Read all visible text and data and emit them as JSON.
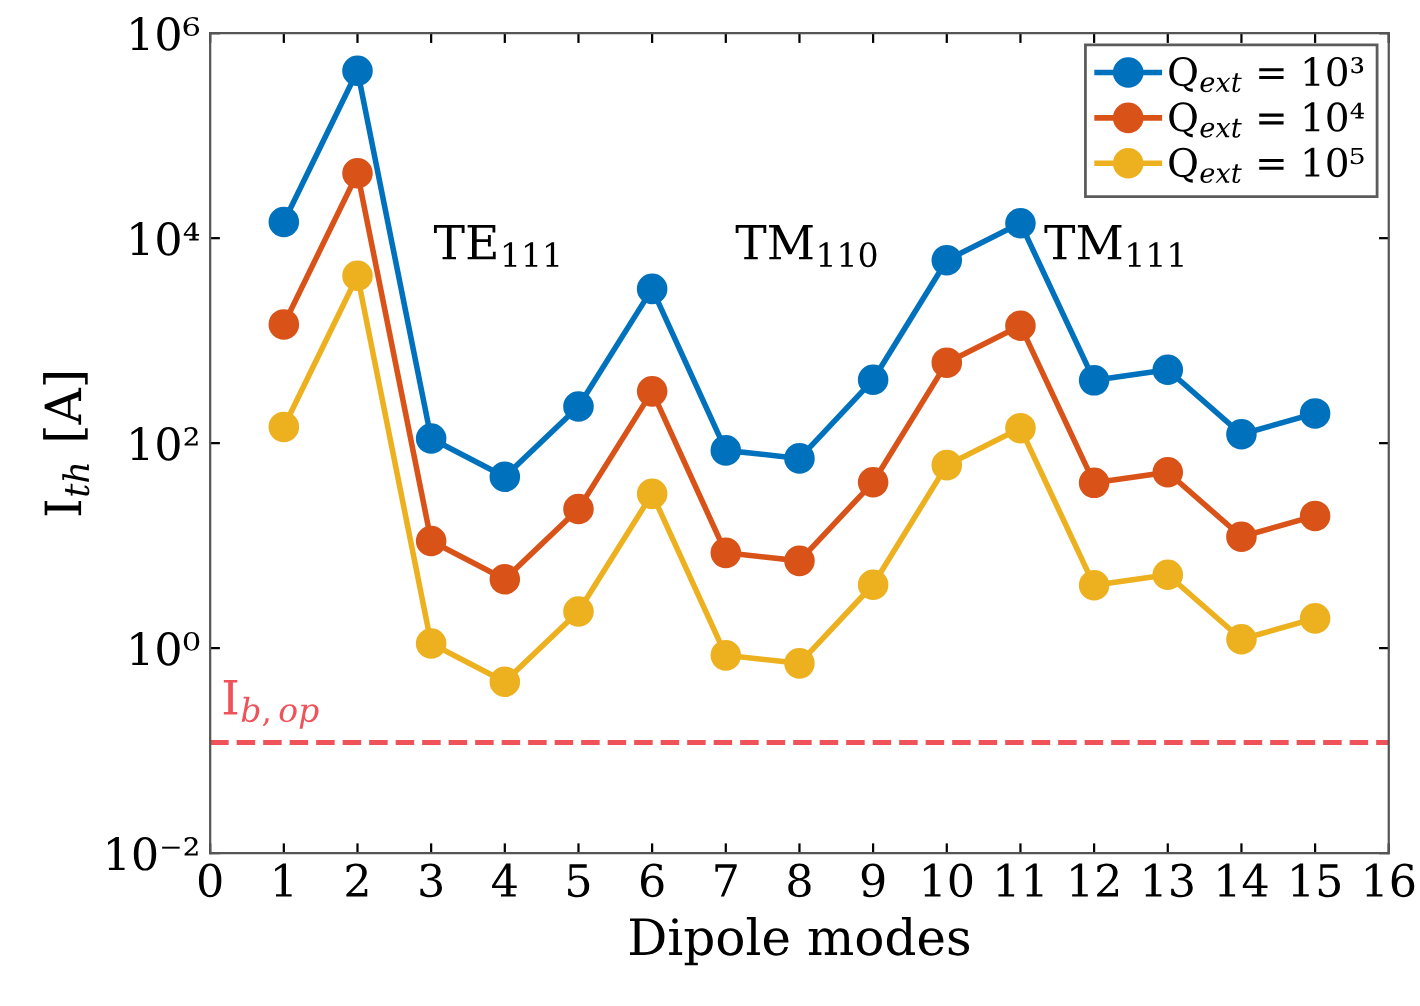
{
  "chart_data": {
    "type": "line",
    "xlabel": "Dipole modes",
    "ylabel": "I$_{th}$ [A]",
    "x": [
      1,
      2,
      3,
      4,
      5,
      6,
      7,
      8,
      9,
      10,
      11,
      12,
      13,
      14,
      15
    ],
    "series": [
      {
        "name": "Q$_{ext}$ = 10³",
        "color": "#0072bd",
        "values": [
          14400,
          430000,
          111,
          47,
          228,
          3200,
          85,
          71,
          415,
          6100,
          14000,
          410,
          520,
          122,
          195
        ]
      },
      {
        "name": "Q$_{ext}$ = 10⁴",
        "color": "#d95319",
        "values": [
          1440,
          43000,
          11.1,
          4.7,
          22.8,
          320,
          8.5,
          7.1,
          41.5,
          610,
          1400,
          41,
          52,
          12.2,
          19.5
        ]
      },
      {
        "name": "Q$_{ext}$ = 10⁵",
        "color": "#edb120",
        "values": [
          144,
          4300,
          1.11,
          0.47,
          2.28,
          32,
          0.85,
          0.71,
          4.15,
          61,
          140,
          4.1,
          5.2,
          1.22,
          1.95
        ]
      }
    ],
    "log": "y",
    "xlim": [
      0,
      16
    ],
    "xticks": [
      0,
      1,
      2,
      3,
      4,
      5,
      6,
      7,
      8,
      9,
      10,
      11,
      12,
      13,
      14,
      15,
      16
    ],
    "ylim": [
      0.01,
      1000000
    ],
    "yticks": [
      {
        "value": 0.01,
        "label": "10⁻²"
      },
      {
        "value": 1,
        "label": "10⁰"
      },
      {
        "value": 100,
        "label": "10²"
      },
      {
        "value": 10000,
        "label": "10⁴"
      },
      {
        "value": 1000000,
        "label": "10⁶"
      }
    ],
    "ref_lines": [
      {
        "axis": "y",
        "value": 0.12,
        "label": "I$_{b,op}$",
        "color": "#f0525a",
        "line_style": "dashed"
      }
    ],
    "annotations": [
      "TE$_{111}$",
      "TM$_{110}$",
      "TM$_{111}$"
    ],
    "legend": "top right",
    "marker": "circle",
    "line_style": "solid",
    "grid": false
  }
}
